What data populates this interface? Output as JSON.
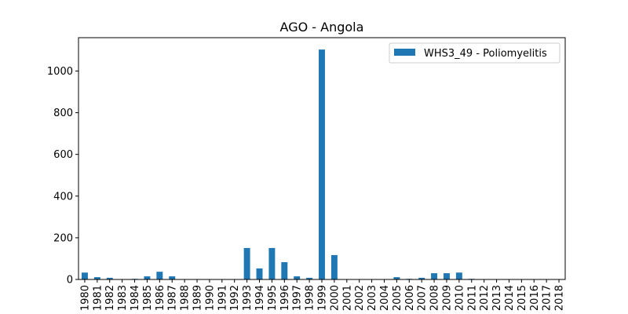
{
  "chart_data": {
    "type": "bar",
    "title": "AGO - Angola",
    "xlabel": "",
    "ylabel": "",
    "categories": [
      "1980",
      "1981",
      "1982",
      "1983",
      "1984",
      "1985",
      "1986",
      "1987",
      "1988",
      "1989",
      "1990",
      "1991",
      "1992",
      "1993",
      "1994",
      "1995",
      "1996",
      "1997",
      "1998",
      "1999",
      "2000",
      "2001",
      "2002",
      "2003",
      "2004",
      "2005",
      "2006",
      "2007",
      "2008",
      "2009",
      "2010",
      "2011",
      "2012",
      "2013",
      "2014",
      "2015",
      "2016",
      "2017",
      "2018"
    ],
    "series": [
      {
        "name": "WHS3_49 - Poliomyelitis",
        "color": "#1f77b4",
        "values": [
          33,
          11,
          8,
          0,
          3,
          15,
          37,
          15,
          0,
          0,
          0,
          0,
          0,
          151,
          53,
          151,
          83,
          15,
          8,
          1103,
          117,
          0,
          0,
          0,
          0,
          11,
          3,
          8,
          30,
          30,
          33,
          3,
          0,
          0,
          0,
          0,
          0,
          0,
          0
        ]
      }
    ],
    "ylim": [
      0,
      1160
    ],
    "yticks": [
      0,
      200,
      400,
      600,
      800,
      1000
    ],
    "legend_position": "upper-right",
    "grid": false
  }
}
